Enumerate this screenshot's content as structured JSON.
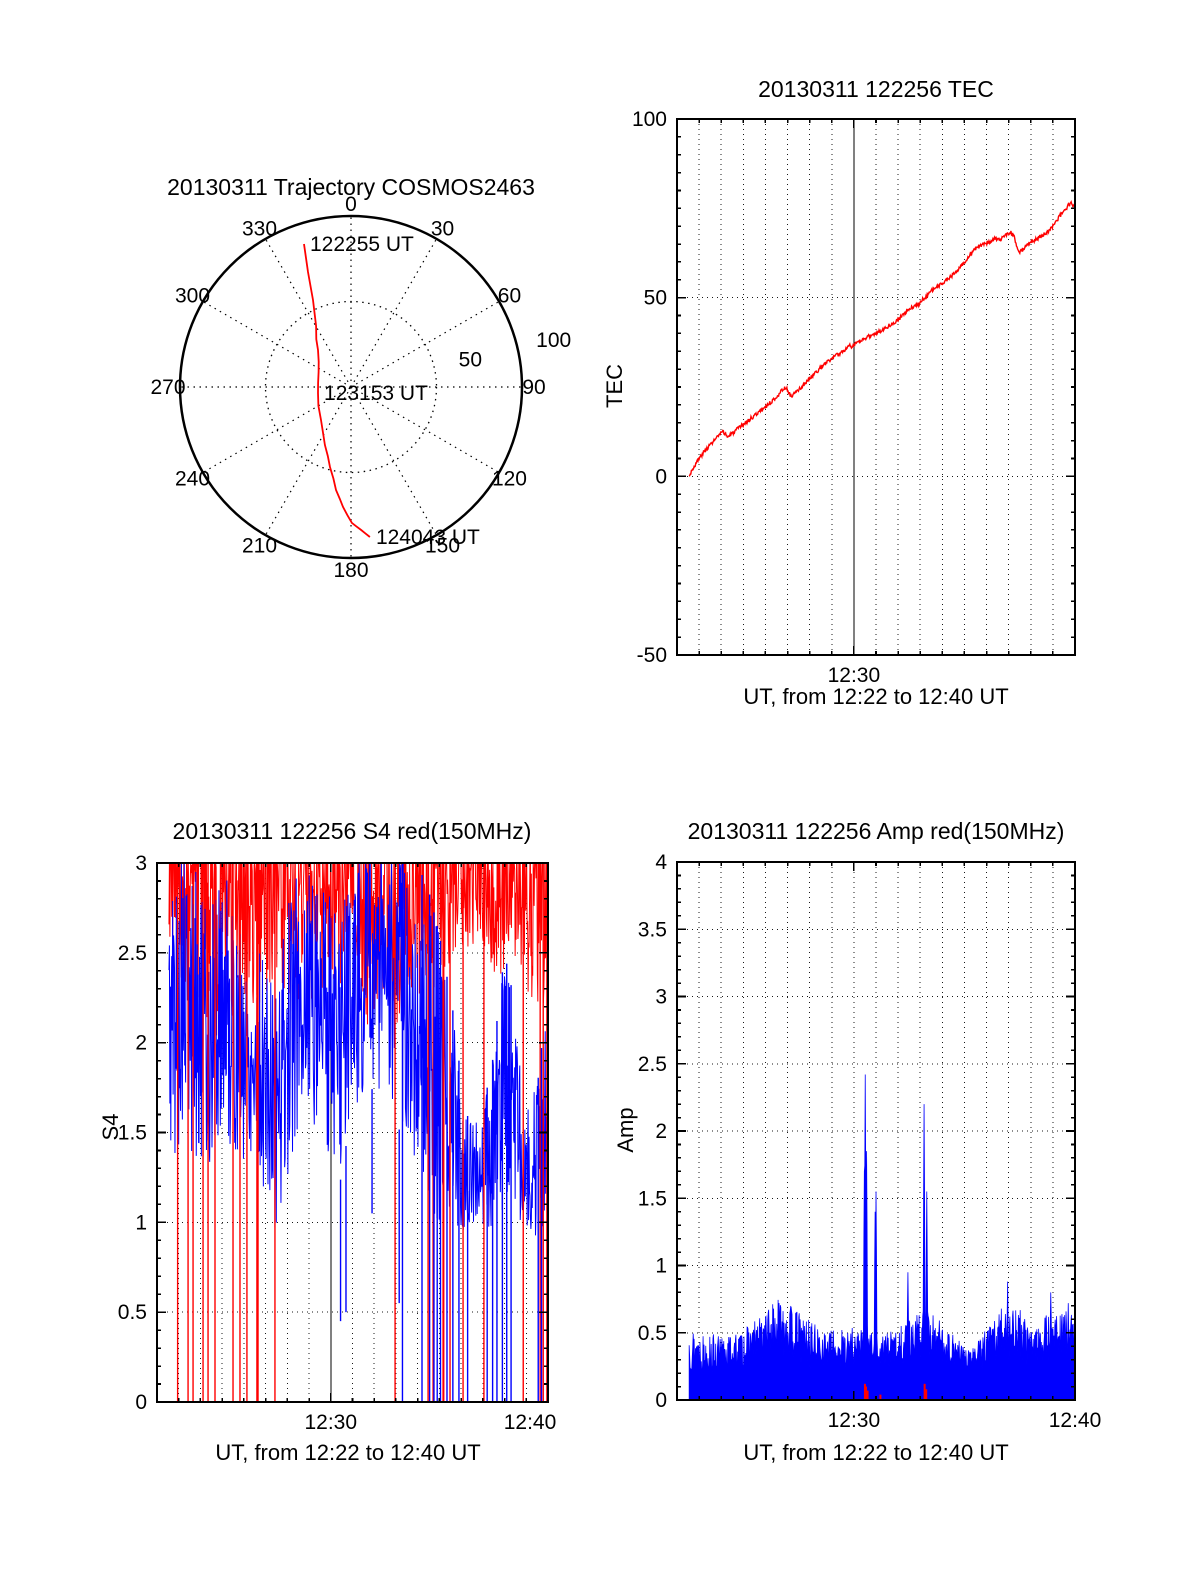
{
  "figure": {
    "background": "#ffffff"
  },
  "colors": {
    "red": "#ff0000",
    "blue": "#0000ff",
    "axis": "#000000"
  },
  "chart_data": [
    {
      "type": "polar-trajectory",
      "title": "20130311 Trajectory COSMOS2463",
      "angle_ticks_deg": [
        0,
        30,
        60,
        90,
        120,
        150,
        180,
        210,
        240,
        270,
        300,
        330
      ],
      "radial_ticks": [
        {
          "r": 50,
          "label": "50"
        },
        {
          "r": 100,
          "label": "100"
        }
      ],
      "radial_label_azimuth_deg": 77,
      "outer_radius_value": 100,
      "dotted_ring_values": [
        50
      ],
      "spoke_step_deg": 30,
      "grid": true,
      "trajectory": {
        "name": "satellite-pass",
        "color": "#ff0000",
        "points_az_deg_r": [
          [
            341.8,
            88.0
          ],
          [
            339.5,
            71.8
          ],
          [
            336.4,
            55.5
          ],
          [
            330.2,
            41.1
          ],
          [
            324.0,
            34.5
          ],
          [
            318.3,
            29.0
          ],
          [
            308.0,
            24.0
          ],
          [
            294.8,
            20.9
          ],
          [
            277.0,
            19.4
          ],
          [
            259.7,
            19.6
          ],
          [
            240.0,
            22.0
          ],
          [
            222.3,
            26.1
          ],
          [
            212.0,
            31.0
          ],
          [
            204.2,
            37.2
          ],
          [
            198.6,
            42.6
          ],
          [
            194.7,
            48.4
          ],
          [
            190.9,
            54.5
          ],
          [
            188.3,
            60.9
          ],
          [
            185.8,
            65.6
          ],
          [
            183.8,
            70.3
          ],
          [
            181.6,
            75.0
          ],
          [
            179.6,
            79.5
          ],
          [
            177.8,
            81.6
          ],
          [
            176.0,
            83.8
          ],
          [
            174.4,
            86.0
          ],
          [
            172.8,
            88.4
          ]
        ]
      },
      "time_labels": [
        {
          "text": "122255 UT",
          "at_point_index": 0
        },
        {
          "text": "123153 UT",
          "at_point_index": 9
        },
        {
          "text": "124043 UT",
          "at_point_index": 25
        }
      ]
    },
    {
      "type": "line",
      "title": "20130311 122256 TEC",
      "ylabel": "TEC",
      "xlabel": "UT, from 12:22 to 12:40 UT",
      "x_start_label": "12:22",
      "x_end_label": "12:40",
      "x_span_minutes": 18,
      "ylim": [
        -50,
        100
      ],
      "yticks": [
        [
          -50,
          "-50"
        ],
        [
          0,
          "0"
        ],
        [
          50,
          "50"
        ],
        [
          100,
          "100"
        ]
      ],
      "y_minor_step": 5,
      "xticks": [
        [
          8,
          "12:30"
        ]
      ],
      "grid_y_dotted": [
        0,
        50
      ],
      "x_solid_gridline_minute": 8,
      "grid": true,
      "series": [
        {
          "name": "TEC",
          "color": "#ff0000",
          "noise_amplitude": 0.55,
          "noise_seed": 3,
          "keypoints_min_value": [
            [
              0.55,
              0
            ],
            [
              0.7,
              2
            ],
            [
              1.0,
              5
            ],
            [
              1.3,
              7.5
            ],
            [
              1.6,
              9.5
            ],
            [
              1.9,
              11.5
            ],
            [
              2.1,
              12.5
            ],
            [
              2.3,
              11.0
            ],
            [
              2.5,
              12.0
            ],
            [
              2.8,
              13.5
            ],
            [
              3.2,
              15.5
            ],
            [
              3.6,
              17.5
            ],
            [
              4.0,
              19.5
            ],
            [
              4.3,
              21.0
            ],
            [
              4.6,
              23.0
            ],
            [
              4.9,
              25.0
            ],
            [
              5.15,
              22.5
            ],
            [
              5.4,
              23.5
            ],
            [
              5.8,
              26.0
            ],
            [
              6.2,
              28.5
            ],
            [
              6.6,
              31.0
            ],
            [
              7.0,
              33.0
            ],
            [
              7.4,
              34.5
            ],
            [
              7.7,
              36.0
            ],
            [
              7.8,
              37.3
            ],
            [
              7.9,
              36.2
            ],
            [
              8.2,
              37.5
            ],
            [
              8.6,
              39.0
            ],
            [
              9.0,
              40.0
            ],
            [
              9.4,
              41.5
            ],
            [
              9.8,
              43.0
            ],
            [
              10.2,
              45.0
            ],
            [
              10.6,
              47.2
            ],
            [
              11.0,
              48.5
            ],
            [
              11.2,
              50.0
            ],
            [
              11.5,
              52.0
            ],
            [
              11.9,
              53.5
            ],
            [
              12.2,
              55.0
            ],
            [
              12.6,
              57.0
            ],
            [
              13.0,
              60.0
            ],
            [
              13.4,
              63.0
            ],
            [
              13.8,
              65.0
            ],
            [
              14.1,
              65.5
            ],
            [
              14.4,
              66.5
            ],
            [
              14.6,
              66.0
            ],
            [
              14.9,
              67.8
            ],
            [
              15.1,
              68.3
            ],
            [
              15.25,
              67.0
            ],
            [
              15.45,
              62.5
            ],
            [
              15.7,
              64.0
            ],
            [
              16.0,
              65.5
            ],
            [
              16.4,
              67.0
            ],
            [
              16.8,
              68.5
            ],
            [
              17.1,
              71.0
            ],
            [
              17.4,
              73.5
            ],
            [
              17.7,
              75.8
            ],
            [
              17.85,
              76.5
            ],
            [
              18.0,
              75.3
            ]
          ]
        }
      ]
    },
    {
      "type": "noise-band",
      "title": "20130311 122256 S4 red(150MHz)",
      "ylabel": "S4",
      "xlabel": "UT, from 12:22 to 12:40 UT",
      "x_start_label": "12:22",
      "x_end_label": "12:40",
      "x_span_minutes": 18,
      "ylim": [
        0,
        3
      ],
      "yticks": [
        [
          0,
          "0"
        ],
        [
          0.5,
          "0.5"
        ],
        [
          1,
          "1"
        ],
        [
          1.5,
          "1.5"
        ],
        [
          2,
          "2"
        ],
        [
          2.5,
          "2.5"
        ],
        [
          3,
          "3"
        ]
      ],
      "y_minor_step": 0.1,
      "xticks": [
        [
          8,
          "12:30"
        ],
        [
          18,
          "12:40"
        ]
      ],
      "grid_y_dotted": [
        0.5,
        1,
        1.5,
        2,
        2.5
      ],
      "x_solid_gridline_minute": 8,
      "clip_max": 3,
      "grid": true,
      "series": [
        {
          "name": "S4-150MHz",
          "color": "#ff0000",
          "noise_seed": 9,
          "envelope_hi": 3.5,
          "envelope_lo": [
            [
              0.55,
              2.45
            ],
            [
              1.5,
              2.2
            ],
            [
              2.5,
              2.0
            ],
            [
              3.5,
              2.15
            ],
            [
              4.5,
              2.1
            ],
            [
              5.5,
              2.35
            ],
            [
              6.5,
              2.15
            ],
            [
              7.5,
              2.25
            ],
            [
              8.5,
              2.3
            ],
            [
              9.5,
              2.1
            ],
            [
              10.5,
              2.0
            ],
            [
              11.5,
              2.15
            ],
            [
              12.5,
              2.25
            ],
            [
              13.5,
              2.45
            ],
            [
              14.5,
              2.55
            ],
            [
              15.5,
              2.35
            ],
            [
              16.5,
              2.45
            ],
            [
              17.2,
              2.25
            ],
            [
              18,
              2.1
            ]
          ],
          "drop_lines_min": [
            0.95,
            1.43,
            1.66,
            2.12,
            2.35,
            2.67,
            3.5,
            3.82,
            4.14,
            4.6,
            4.65,
            5.43,
            10.96,
            12.48,
            12.71,
            13.17,
            13.2,
            13.49,
            14.09,
            15.05,
            16.86,
            17.64,
            17.78,
            17.95
          ]
        },
        {
          "name": "S4-secondary",
          "color": "#0000ff",
          "noise_seed": 5,
          "envelope": [
            [
              0.55,
              1.3,
              2.9
            ],
            [
              1.2,
              1.45,
              3.05
            ],
            [
              1.8,
              1.35,
              2.95
            ],
            [
              2.4,
              1.2,
              2.75
            ],
            [
              3.0,
              1.5,
              3.05
            ],
            [
              3.6,
              1.35,
              2.7
            ],
            [
              4.2,
              1.35,
              2.55
            ],
            [
              4.8,
              1.2,
              2.5
            ],
            [
              5.4,
              0.95,
              2.3
            ],
            [
              5.8,
              1.15,
              2.6
            ],
            [
              6.2,
              1.35,
              2.9
            ],
            [
              6.8,
              1.5,
              3.1
            ],
            [
              7.4,
              1.55,
              3.1
            ],
            [
              8.0,
              1.35,
              2.9
            ],
            [
              8.4,
              1.2,
              2.6
            ],
            [
              8.8,
              1.5,
              3.0
            ],
            [
              9.4,
              1.7,
              3.1
            ],
            [
              10.0,
              1.75,
              3.15
            ],
            [
              10.6,
              1.7,
              3.1
            ],
            [
              11.2,
              1.5,
              3.05
            ],
            [
              11.8,
              1.35,
              3.0
            ],
            [
              12.4,
              1.1,
              2.9
            ],
            [
              13.0,
              0.95,
              2.6
            ],
            [
              13.6,
              1.0,
              2.2
            ],
            [
              14.2,
              0.95,
              1.6
            ],
            [
              14.8,
              1.0,
              1.55
            ],
            [
              15.4,
              0.95,
              1.85
            ],
            [
              16.0,
              1.0,
              2.5
            ],
            [
              16.5,
              1.05,
              2.2
            ],
            [
              17.0,
              0.95,
              1.8
            ],
            [
              17.5,
              0.9,
              1.75
            ],
            [
              18.0,
              1.0,
              2.3
            ]
          ],
          "drop_lines_min": [
            11.3,
            12.2,
            12.55,
            12.75,
            12.9,
            13.05,
            13.35,
            13.62,
            13.9,
            14.3,
            15.2,
            15.45,
            15.65,
            15.9,
            16.1,
            16.3,
            17.55,
            17.7
          ],
          "down_spikes": [
            [
              8.45,
              0.45
            ],
            [
              8.7,
              0.5
            ],
            [
              9.9,
              1.05
            ],
            [
              11.15,
              0.55
            ]
          ]
        }
      ]
    },
    {
      "type": "area-noise",
      "title": "20130311 122256 Amp red(150MHz)",
      "ylabel": "Amp",
      "xlabel": "UT, from 12:22 to 12:40 UT",
      "x_start_label": "12:22",
      "x_end_label": "12:40",
      "x_span_minutes": 18,
      "ylim": [
        0,
        4
      ],
      "yticks": [
        [
          0,
          "0"
        ],
        [
          0.5,
          "0.5"
        ],
        [
          1,
          "1"
        ],
        [
          1.5,
          "1.5"
        ],
        [
          2,
          "2"
        ],
        [
          2.5,
          "2.5"
        ],
        [
          3,
          "3"
        ],
        [
          3.5,
          "3.5"
        ],
        [
          4,
          "4"
        ]
      ],
      "y_minor_step": 0.1,
      "xticks": [
        [
          8,
          "12:30"
        ],
        [
          18,
          "12:40"
        ]
      ],
      "grid_y_dotted": [
        0.5,
        1,
        1.5,
        2,
        2.5,
        3,
        3.5
      ],
      "x_solid_gridline_minute": null,
      "grid": true,
      "series": [
        {
          "name": "Amp-secondary",
          "color": "#0000ff",
          "noise_seed": 13,
          "envelope": [
            [
              0.55,
              0.22,
              0.55
            ],
            [
              1.2,
              0.18,
              0.5
            ],
            [
              2.0,
              0.18,
              0.48
            ],
            [
              2.8,
              0.22,
              0.5
            ],
            [
              3.6,
              0.25,
              0.6
            ],
            [
              4.3,
              0.3,
              0.72
            ],
            [
              4.8,
              0.32,
              0.78
            ],
            [
              5.3,
              0.28,
              0.68
            ],
            [
              5.9,
              0.22,
              0.62
            ],
            [
              6.5,
              0.25,
              0.52
            ],
            [
              7.2,
              0.22,
              0.52
            ],
            [
              7.9,
              0.25,
              0.55
            ],
            [
              8.6,
              0.25,
              0.52
            ],
            [
              9.3,
              0.22,
              0.48
            ],
            [
              10.0,
              0.25,
              0.55
            ],
            [
              10.7,
              0.28,
              0.62
            ],
            [
              11.3,
              0.3,
              0.68
            ],
            [
              11.9,
              0.28,
              0.6
            ],
            [
              12.5,
              0.22,
              0.48
            ],
            [
              13.1,
              0.18,
              0.4
            ],
            [
              13.7,
              0.2,
              0.45
            ],
            [
              14.3,
              0.25,
              0.62
            ],
            [
              14.9,
              0.3,
              0.72
            ],
            [
              15.4,
              0.28,
              0.7
            ],
            [
              16.0,
              0.22,
              0.55
            ],
            [
              16.6,
              0.25,
              0.62
            ],
            [
              17.1,
              0.28,
              0.68
            ],
            [
              17.6,
              0.3,
              0.66
            ],
            [
              18.0,
              0.32,
              0.62
            ]
          ],
          "spikes": [
            [
              8.47,
              1.7
            ],
            [
              8.52,
              2.42
            ],
            [
              8.58,
              1.85
            ],
            [
              8.95,
              1.4
            ],
            [
              9.0,
              1.55
            ],
            [
              10.45,
              0.95
            ],
            [
              11.18,
              2.2
            ],
            [
              11.3,
              1.55
            ],
            [
              14.95,
              0.88
            ],
            [
              16.9,
              0.8
            ],
            [
              17.7,
              0.72
            ]
          ]
        },
        {
          "name": "Amp-150MHz",
          "color": "#ff0000",
          "marks": [
            [
              8.5,
              0.12
            ],
            [
              8.55,
              0.1
            ],
            [
              8.62,
              0.07
            ],
            [
              9.2,
              0.04
            ],
            [
              11.2,
              0.12
            ],
            [
              11.27,
              0.08
            ]
          ]
        }
      ]
    }
  ]
}
